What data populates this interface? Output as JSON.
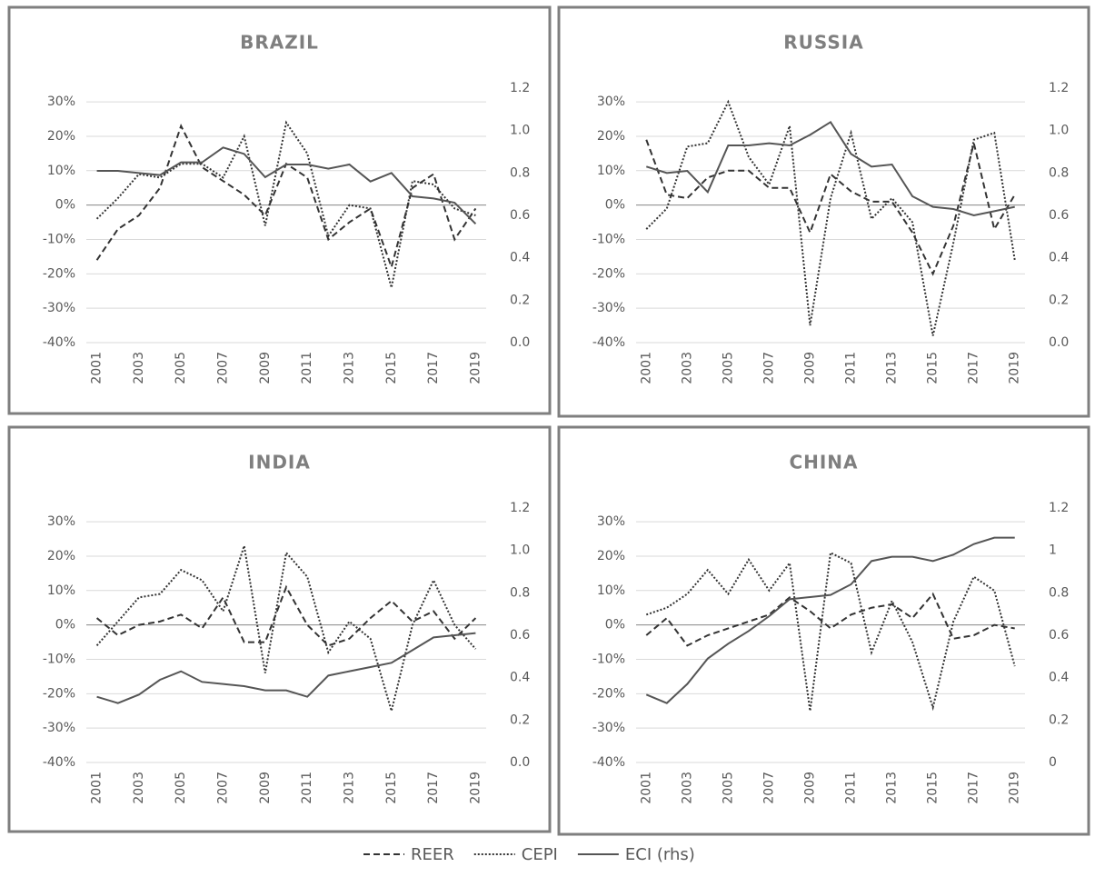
{
  "chart_data": [
    {
      "type": "line",
      "title": "BRAZIL",
      "categories": [
        "2001",
        null,
        "2003",
        null,
        "2005",
        null,
        "2007",
        null,
        "2009",
        null,
        "2011",
        null,
        "2013",
        null,
        "2015",
        null,
        "2017",
        null,
        "2019"
      ],
      "ylim": [
        -40,
        34
      ],
      "yticks": [
        {
          "value": -40,
          "label": "-40%"
        },
        {
          "value": -30,
          "label": "-30%"
        },
        {
          "value": -20,
          "label": "-20%"
        },
        {
          "value": -10,
          "label": "-10%"
        },
        {
          "value": 0,
          "label": "0%"
        },
        {
          "value": 10,
          "label": "10%"
        },
        {
          "value": 20,
          "label": "20%"
        },
        {
          "value": 30,
          "label": "30%"
        }
      ],
      "y2lim": [
        0,
        1.2
      ],
      "y2ticks": [
        {
          "value": 0,
          "label": "0.0"
        },
        0.2,
        0.4,
        0.6,
        0.8,
        {
          "value": 1,
          "label": "1.0"
        },
        1.2
      ],
      "grid": true,
      "series": [
        {
          "name": "REER",
          "color": "#333333",
          "dash": "7,4",
          "values": [
            -16,
            -7,
            -3,
            5,
            23,
            11,
            7,
            3,
            -3,
            12,
            8,
            -10,
            -5,
            -1,
            -18,
            5,
            9,
            -10,
            -1
          ]
        },
        {
          "name": "CEPI",
          "color": "#333333",
          "dash": "2,2",
          "values": [
            -4,
            2,
            9,
            8,
            12,
            12,
            8,
            20,
            -6,
            24,
            15,
            -9,
            0,
            -1,
            -24,
            7,
            6,
            -1,
            -3
          ]
        },
        {
          "name": "ECI (rhs)",
          "color": "#555555",
          "axis": "y2",
          "values": [
            0.81,
            0.81,
            0.8,
            0.79,
            0.85,
            0.85,
            0.92,
            0.89,
            0.78,
            0.84,
            0.84,
            0.82,
            0.84,
            0.76,
            0.8,
            0.69,
            0.68,
            0.66,
            0.56
          ]
        }
      ]
    },
    {
      "type": "line",
      "title": "RUSSIA",
      "categories": [
        "2001",
        null,
        "2003",
        null,
        "2005",
        null,
        "2007",
        null,
        "2009",
        null,
        "2011",
        null,
        "2013",
        null,
        "2015",
        null,
        "2017",
        null,
        "2019"
      ],
      "ylim": [
        -40,
        34
      ],
      "yticks": [
        {
          "value": -40,
          "label": "-40%"
        },
        {
          "value": -30,
          "label": "-30%"
        },
        {
          "value": -20,
          "label": "-20%"
        },
        {
          "value": -10,
          "label": "-10%"
        },
        {
          "value": 0,
          "label": "0%"
        },
        {
          "value": 10,
          "label": "10%"
        },
        {
          "value": 20,
          "label": "20%"
        },
        {
          "value": 30,
          "label": "30%"
        }
      ],
      "y2lim": [
        0,
        1.2
      ],
      "y2ticks": [
        {
          "value": 0,
          "label": "0.0"
        },
        0.2,
        0.4,
        0.6,
        0.8,
        {
          "value": 1,
          "label": "1.0"
        },
        1.2
      ],
      "grid": true,
      "series": [
        {
          "name": "REER",
          "color": "#333333",
          "dash": "7,4",
          "values": [
            19,
            3,
            2,
            8,
            10,
            10,
            5,
            5,
            -8,
            9,
            4,
            1,
            1,
            -8,
            -20,
            -6,
            18,
            -7,
            3
          ]
        },
        {
          "name": "CEPI",
          "color": "#333333",
          "dash": "2,2",
          "values": [
            -7,
            -1,
            17,
            18,
            30,
            14,
            6,
            23,
            -35,
            2,
            21,
            -4,
            2,
            -5,
            -38,
            -11,
            19,
            21,
            -16
          ]
        },
        {
          "name": "ECI (rhs)",
          "color": "#555555",
          "axis": "y2",
          "values": [
            0.83,
            0.8,
            0.81,
            0.71,
            0.93,
            0.93,
            0.94,
            0.93,
            0.98,
            1.04,
            0.89,
            0.83,
            0.84,
            0.69,
            0.64,
            0.63,
            0.6,
            0.62,
            0.64
          ]
        }
      ]
    },
    {
      "type": "line",
      "title": "INDIA",
      "categories": [
        "2001",
        null,
        "2003",
        null,
        "2005",
        null,
        "2007",
        null,
        "2009",
        null,
        "2011",
        null,
        "2013",
        null,
        "2015",
        null,
        "2017",
        null,
        "2019"
      ],
      "ylim": [
        -40,
        34
      ],
      "yticks": [
        {
          "value": -40,
          "label": "-40%"
        },
        {
          "value": -30,
          "label": "-30%"
        },
        {
          "value": -20,
          "label": "-20%"
        },
        {
          "value": -10,
          "label": "-10%"
        },
        {
          "value": 0,
          "label": "0%"
        },
        {
          "value": 10,
          "label": "10%"
        },
        {
          "value": 20,
          "label": "20%"
        },
        {
          "value": 30,
          "label": "30%"
        }
      ],
      "y2lim": [
        0,
        1.2
      ],
      "y2ticks": [
        {
          "value": 0,
          "label": "0.0"
        },
        0.2,
        0.4,
        0.6,
        0.8,
        {
          "value": 1,
          "label": "1.0"
        },
        1.2
      ],
      "grid": true,
      "series": [
        {
          "name": "REER",
          "color": "#333333",
          "dash": "7,4",
          "values": [
            2,
            -3,
            0,
            1,
            3,
            -1,
            8,
            -5,
            -5,
            11,
            0,
            -6,
            -4,
            2,
            7,
            1,
            4,
            -4,
            2
          ]
        },
        {
          "name": "CEPI",
          "color": "#333333",
          "dash": "2,2",
          "values": [
            -6,
            1,
            8,
            9,
            16,
            13,
            4,
            23,
            -14,
            21,
            14,
            -8,
            1,
            -4,
            -25,
            0,
            13,
            0,
            -7
          ]
        },
        {
          "name": "ECI (rhs)",
          "color": "#555555",
          "axis": "y2",
          "values": [
            0.31,
            0.28,
            0.32,
            0.39,
            0.43,
            0.38,
            0.37,
            0.36,
            0.34,
            0.34,
            0.31,
            0.41,
            0.43,
            0.45,
            0.47,
            0.53,
            0.59,
            0.6,
            0.61
          ]
        }
      ]
    },
    {
      "type": "line",
      "title": "CHINA",
      "categories": [
        "2001",
        null,
        "2003",
        null,
        "2005",
        null,
        "2007",
        null,
        "2009",
        null,
        "2011",
        null,
        "2013",
        null,
        "2015",
        null,
        "2017",
        null,
        "2019"
      ],
      "ylim": [
        -40,
        34
      ],
      "yticks": [
        {
          "value": -40,
          "label": "-40%"
        },
        {
          "value": -30,
          "label": "-30%"
        },
        {
          "value": -20,
          "label": "-20%"
        },
        {
          "value": -10,
          "label": "-10%"
        },
        {
          "value": 0,
          "label": "0%"
        },
        {
          "value": 10,
          "label": "10%"
        },
        {
          "value": 20,
          "label": "20%"
        },
        {
          "value": 30,
          "label": "30%"
        }
      ],
      "y2lim": [
        0,
        1.2
      ],
      "y2ticks": [
        0,
        0.2,
        0.4,
        0.6,
        0.8,
        1,
        1.2
      ],
      "grid": true,
      "series": [
        {
          "name": "REER",
          "color": "#333333",
          "dash": "7,4",
          "values": [
            -3,
            2,
            -6,
            -3,
            -1,
            1,
            3,
            8,
            4,
            -1,
            3,
            5,
            6,
            2,
            9,
            -4,
            -3,
            0,
            -1
          ]
        },
        {
          "name": "CEPI",
          "color": "#333333",
          "dash": "2,2",
          "values": [
            3,
            5,
            9,
            16,
            9,
            19,
            10,
            18,
            -25,
            21,
            18,
            -8,
            7,
            -5,
            -24,
            1,
            14,
            10,
            -12
          ]
        },
        {
          "name": "ECI (rhs)",
          "color": "#555555",
          "axis": "y2",
          "values": [
            0.32,
            0.28,
            0.37,
            0.49,
            0.56,
            0.62,
            0.69,
            0.77,
            0.78,
            0.79,
            0.84,
            0.95,
            0.97,
            0.97,
            0.95,
            0.98,
            1.03,
            1.06,
            1.06
          ]
        }
      ]
    }
  ]
}
